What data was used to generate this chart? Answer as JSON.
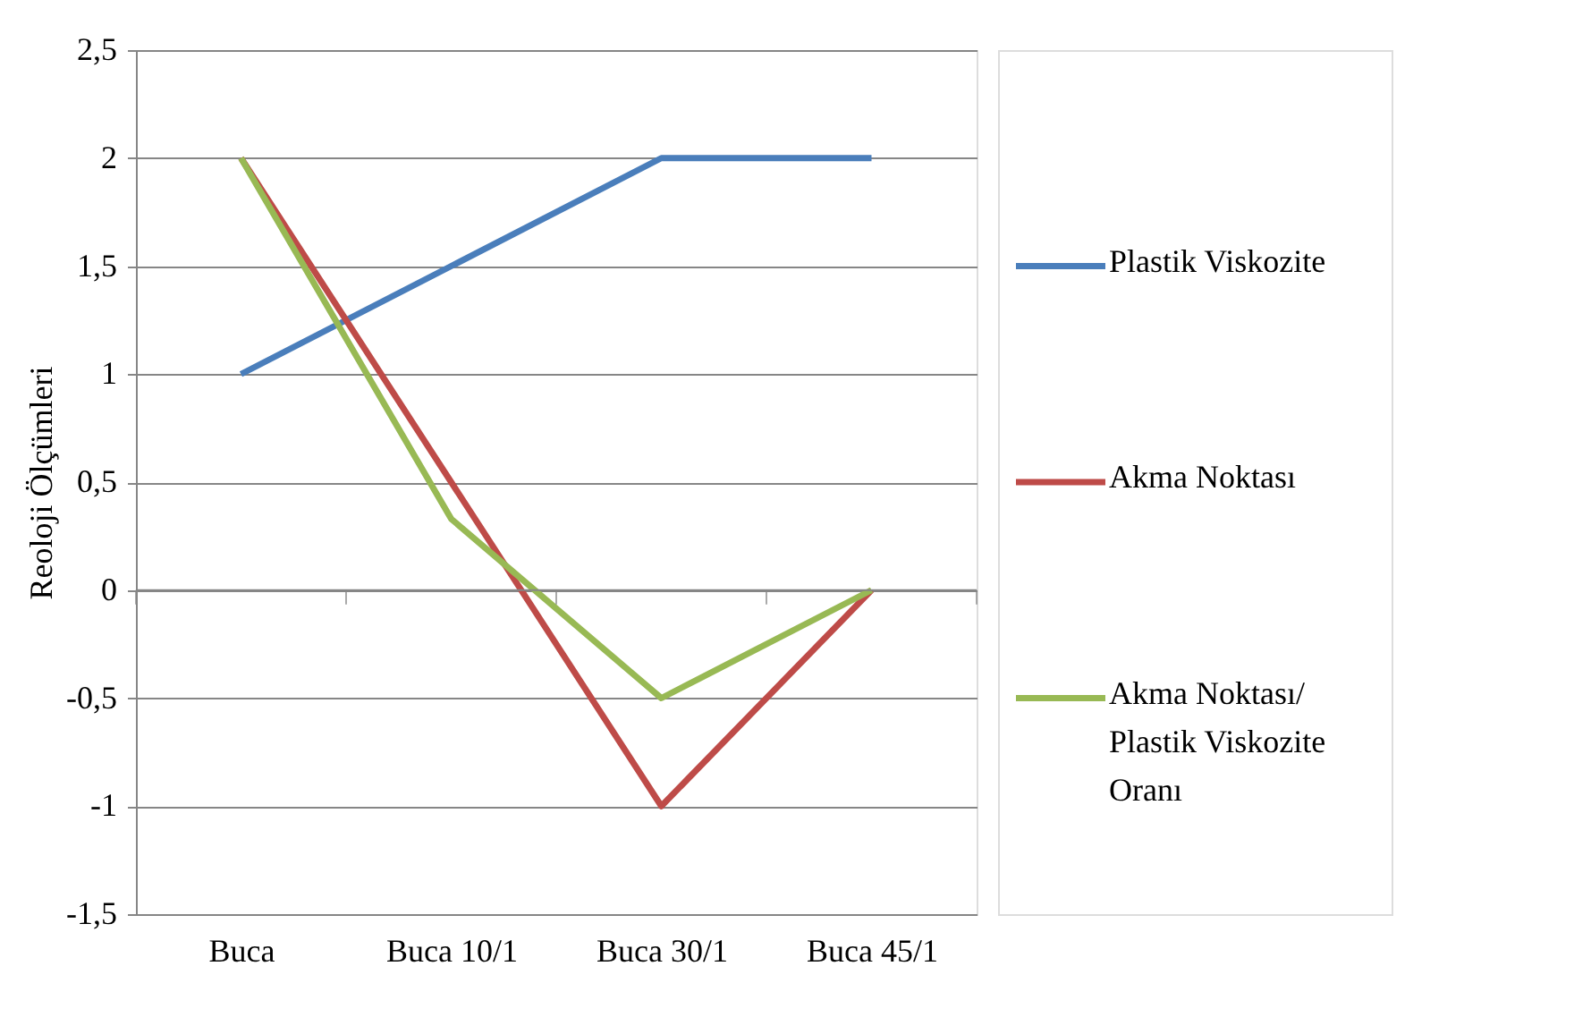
{
  "chart_data": {
    "type": "line",
    "ylabel": "Reoloji Ölçümleri",
    "categories": [
      "Buca",
      "Buca  10/1",
      "Buca 30/1",
      "Buca 45/1"
    ],
    "series": [
      {
        "name": "Plastik Viskozite",
        "color": "#4a7ebb",
        "values": [
          1,
          1.5,
          2,
          2
        ]
      },
      {
        "name": "Akma Noktası",
        "color": "#be4b48",
        "values": [
          2,
          0.5,
          -1,
          0
        ]
      },
      {
        "name": "Akma Noktası/ Plastik Viskozite Oranı",
        "color": "#98b954",
        "values": [
          2,
          0.33,
          -0.5,
          0
        ]
      }
    ],
    "ylim": [
      -1.5,
      2.5
    ],
    "yticks": [
      {
        "value": -1.5,
        "label": "-1,5"
      },
      {
        "value": -1,
        "label": "-1"
      },
      {
        "value": -0.5,
        "label": "-0,5"
      },
      {
        "value": 0,
        "label": "0"
      },
      {
        "value": 0.5,
        "label": "0,5"
      },
      {
        "value": 1,
        "label": "1"
      },
      {
        "value": 1.5,
        "label": "1,5"
      },
      {
        "value": 2,
        "label": "2"
      },
      {
        "value": 2.5,
        "label": "2,5"
      }
    ],
    "grid": "y",
    "legend": "right",
    "marker": "none",
    "line_style": "solid"
  }
}
